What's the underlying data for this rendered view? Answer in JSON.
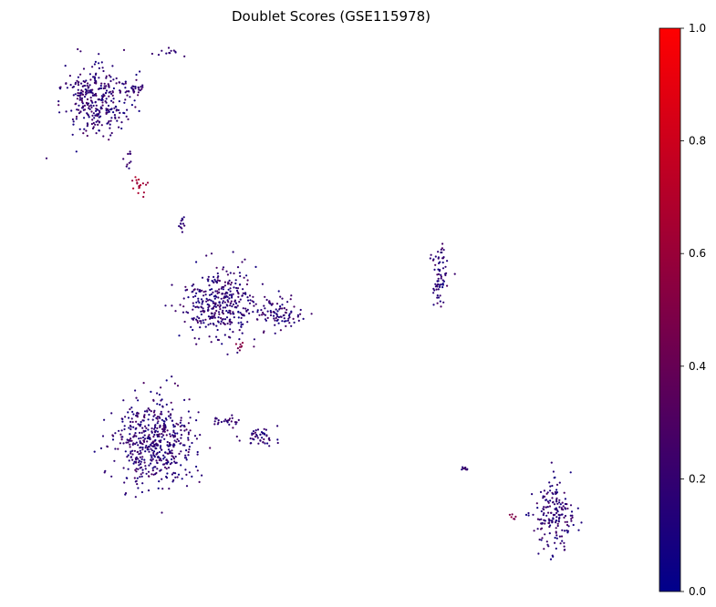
{
  "chart_data": {
    "type": "scatter",
    "title": "Doublet Scores (GSE115978)",
    "xlabel": "",
    "ylabel": "",
    "axes_visible": false,
    "colormap": {
      "name": "blue-red",
      "low_color": "#00008b",
      "high_color": "#ff0000",
      "range": [
        0,
        1
      ],
      "ticks": [
        0.0,
        0.2,
        0.4,
        0.6,
        0.8,
        1.0
      ],
      "tick_labels": [
        "0.0",
        "0.2",
        "0.4",
        "0.6",
        "0.8",
        "1.0"
      ]
    },
    "xlim": [
      0,
      100
    ],
    "ylim": [
      0,
      100
    ],
    "clusters": [
      {
        "id": "top-left-blob",
        "center": [
          10,
          88
        ],
        "spread": [
          5.5,
          6
        ],
        "count": 320,
        "score": [
          0.05,
          0.3
        ]
      },
      {
        "id": "top-left-satellite",
        "center": [
          16.5,
          90
        ],
        "spread": [
          1.5,
          1.5
        ],
        "count": 25,
        "score": [
          0.1,
          0.3
        ]
      },
      {
        "id": "top-streak",
        "center": [
          22,
          97
        ],
        "spread": [
          2,
          0.6
        ],
        "count": 12,
        "score": [
          0.1,
          0.25
        ]
      },
      {
        "id": "red-doublet-cluster",
        "center": [
          17.5,
          72
        ],
        "spread": [
          1.2,
          1.2
        ],
        "count": 18,
        "score": [
          0.55,
          0.7
        ]
      },
      {
        "id": "upper-bridge",
        "center": [
          15.5,
          77
        ],
        "spread": [
          0.6,
          2
        ],
        "count": 10,
        "score": [
          0.1,
          0.3
        ]
      },
      {
        "id": "small-upper-mid",
        "center": [
          24.5,
          65
        ],
        "spread": [
          0.6,
          1.2
        ],
        "count": 12,
        "score": [
          0.1,
          0.25
        ]
      },
      {
        "id": "center-mass",
        "center": [
          31,
          50
        ],
        "spread": [
          5.5,
          6
        ],
        "count": 360,
        "score": [
          0.05,
          0.3
        ]
      },
      {
        "id": "center-right-lobe",
        "center": [
          41,
          48
        ],
        "spread": [
          4,
          2.5
        ],
        "count": 90,
        "score": [
          0.05,
          0.3
        ]
      },
      {
        "id": "center-small-doublets",
        "center": [
          34,
          42
        ],
        "spread": [
          0.8,
          0.8
        ],
        "count": 8,
        "score": [
          0.4,
          0.55
        ]
      },
      {
        "id": "bottom-left-large",
        "center": [
          20,
          24
        ],
        "spread": [
          6,
          7.5
        ],
        "count": 520,
        "score": [
          0.05,
          0.3
        ]
      },
      {
        "id": "bottom-arm-left",
        "center": [
          32,
          28
        ],
        "spread": [
          2.5,
          1
        ],
        "count": 25,
        "score": [
          0.1,
          0.3
        ]
      },
      {
        "id": "bottom-arm-middle",
        "center": [
          38,
          25
        ],
        "spread": [
          3,
          1.5
        ],
        "count": 45,
        "score": [
          0.05,
          0.3
        ]
      },
      {
        "id": "right-vertical-strand",
        "center": [
          68,
          55
        ],
        "spread": [
          1.2,
          6
        ],
        "count": 70,
        "score": [
          0.05,
          0.3
        ]
      },
      {
        "id": "bottom-right-small",
        "center": [
          72,
          19
        ],
        "spread": [
          0.6,
          0.6
        ],
        "count": 10,
        "score": [
          0.1,
          0.3
        ]
      },
      {
        "id": "bottom-right-cluster",
        "center": [
          87,
          10
        ],
        "spread": [
          3,
          6
        ],
        "count": 180,
        "score": [
          0.05,
          0.3
        ]
      },
      {
        "id": "bottom-right-doublets",
        "center": [
          80.5,
          10
        ],
        "spread": [
          0.8,
          0.8
        ],
        "count": 6,
        "score": [
          0.4,
          0.6
        ]
      }
    ]
  }
}
